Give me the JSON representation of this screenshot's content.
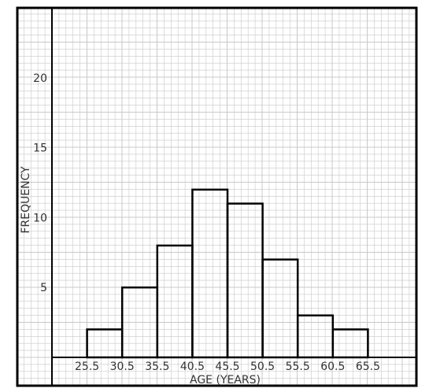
{
  "chart_data": {
    "type": "bar",
    "xlabel": "AGE (YEARS)",
    "ylabel": "FREQUENCY",
    "boundaries": [
      25.5,
      30.5,
      35.5,
      40.5,
      45.5,
      50.5,
      55.5,
      60.5,
      65.5
    ],
    "x_tick_labels": [
      "25.5",
      "30.5",
      "35.5",
      "40.5",
      "45.5",
      "50.5",
      "55.5",
      "60.5",
      "65.5"
    ],
    "values": [
      2,
      5,
      8,
      12,
      11,
      7,
      3,
      2
    ],
    "y_ticks": [
      5,
      10,
      15,
      20
    ],
    "ylim": [
      0,
      25
    ],
    "xlim": [
      20.5,
      70.5
    ],
    "grid": true,
    "colors": {
      "grid": "#c8c8c8",
      "axis": "#000000",
      "bars": "#000000"
    }
  }
}
